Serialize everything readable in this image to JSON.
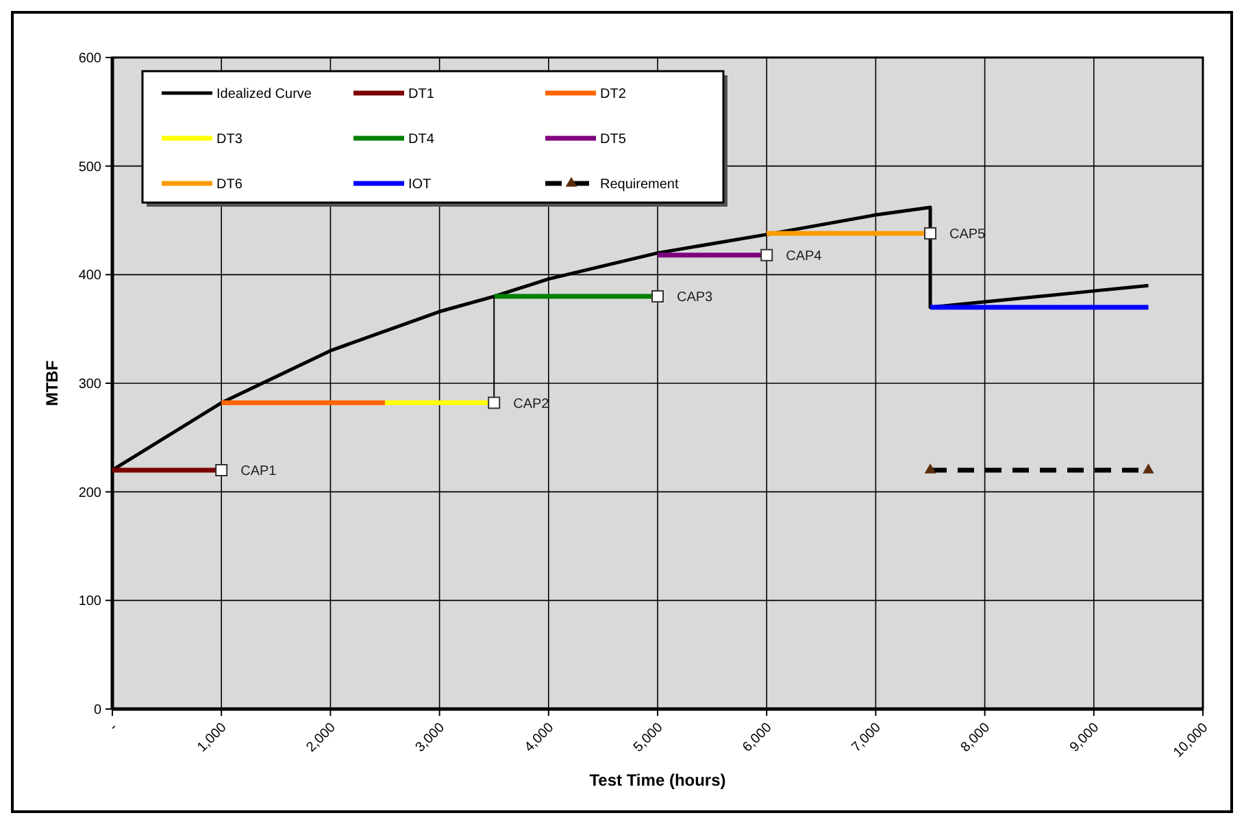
{
  "chart_data": {
    "type": "line",
    "xlabel": "Test Time (hours)",
    "ylabel": "MTBF",
    "xlim": [
      0,
      10000
    ],
    "xticks": [
      {
        "value": 0,
        "label": "-"
      },
      {
        "value": 1000,
        "label": "1,000"
      },
      {
        "value": 2000,
        "label": "2,000"
      },
      {
        "value": 3000,
        "label": "3,000"
      },
      {
        "value": 4000,
        "label": "4,000"
      },
      {
        "value": 5000,
        "label": "5,000"
      },
      {
        "value": 6000,
        "label": "6,000"
      },
      {
        "value": 7000,
        "label": "7,000"
      },
      {
        "value": 8000,
        "label": "8,000"
      },
      {
        "value": 9000,
        "label": "9,000"
      },
      {
        "value": 10000,
        "label": "10,000"
      }
    ],
    "ylim": [
      0,
      600
    ],
    "yticks": [
      0,
      100,
      200,
      300,
      400,
      500,
      600
    ],
    "grid": true,
    "legend": "top left",
    "marker": "none",
    "line_style": "solid",
    "series": [
      {
        "name": "Idealized Curve",
        "color": "#000000",
        "x": [
          0,
          1000,
          2000,
          3000,
          3500,
          4000,
          5000,
          6000,
          7000,
          7500,
          7500,
          8000,
          9000,
          9500
        ],
        "values": [
          220,
          282,
          330,
          366,
          380,
          396,
          420,
          437,
          455,
          462,
          370,
          375,
          385,
          390
        ]
      },
      {
        "name": "DT1",
        "color": "#7b0000",
        "x": [
          0,
          1000
        ],
        "values": [
          220,
          220
        ]
      },
      {
        "name": "DT2",
        "color": "#ff6600",
        "x": [
          1000,
          2500
        ],
        "values": [
          282,
          282
        ]
      },
      {
        "name": "DT3",
        "color": "#ffff00",
        "x": [
          2500,
          3500
        ],
        "values": [
          282,
          282
        ]
      },
      {
        "name": "DT4",
        "color": "#008000",
        "x": [
          3500,
          5000
        ],
        "values": [
          380,
          380
        ]
      },
      {
        "name": "DT5",
        "color": "#800080",
        "x": [
          5000,
          6000
        ],
        "values": [
          418,
          418
        ]
      },
      {
        "name": "DT6",
        "color": "#ff9900",
        "x": [
          6000,
          7500
        ],
        "values": [
          438,
          438
        ]
      },
      {
        "name": "IOT",
        "color": "#0000ff",
        "x": [
          7500,
          9500
        ],
        "values": [
          370,
          370
        ]
      },
      {
        "name": "Requirement",
        "color": "#000000",
        "x": [
          7500,
          9500
        ],
        "values": [
          220,
          220
        ],
        "line_style": "dashed",
        "marker": "triangle"
      },
      {
        "color": "#000000",
        "x": [
          3500,
          3500
        ],
        "values": [
          282,
          380
        ]
      },
      {
        "type": "scatter",
        "color": "#ffffff",
        "marker": "square",
        "x": [
          1000,
          3500,
          5000,
          6000,
          7500
        ],
        "values": [
          220,
          282,
          380,
          418,
          438
        ]
      }
    ],
    "annotations": [
      {
        "text": "CAP1",
        "x": 1000,
        "y": 220
      },
      {
        "text": "CAP2",
        "x": 3500,
        "y": 282
      },
      {
        "text": "CAP3",
        "x": 5000,
        "y": 380
      },
      {
        "text": "CAP4",
        "x": 6000,
        "y": 418
      },
      {
        "text": "CAP5",
        "x": 7500,
        "y": 438
      }
    ]
  }
}
